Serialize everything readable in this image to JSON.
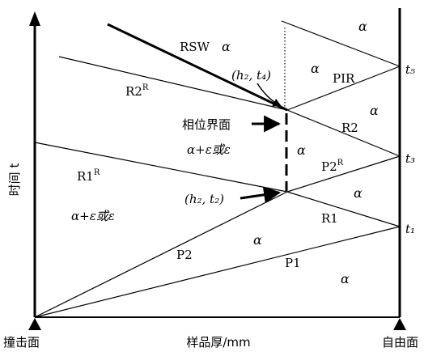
{
  "labels": {
    "rsw": "RSW",
    "pir": "PIR",
    "r2r_base": "R2",
    "r2r_sup": "R",
    "r1r_base": "R1",
    "r1r_sup": "R",
    "p2r_base": "P2",
    "p2r_sup": "R",
    "r2": "R2",
    "r1": "R1",
    "p2": "P2",
    "p1": "P1",
    "alpha": "α",
    "alpha_eps": "α+ε或ε",
    "phase_interface": "相位界面",
    "point_h2t4": "(h₂, t₄)",
    "point_h2t2": "(h₂, t₂)"
  },
  "axes": {
    "y_label": "时间 t",
    "x_label": "样品厚/mm",
    "left_end": "撞击面",
    "right_end": "自由面",
    "t1": "t₁",
    "t3": "t₃",
    "t5": "t₅"
  }
}
